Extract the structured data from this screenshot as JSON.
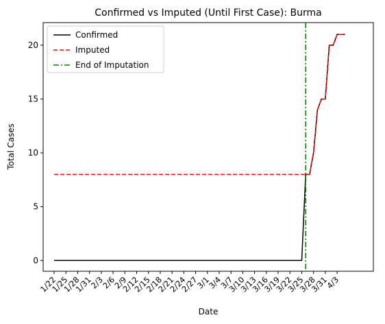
{
  "chart_data": {
    "type": "line",
    "title": "Confirmed vs Imputed (Until First Case): Burma",
    "xlabel": "Date",
    "ylabel": "Total Cases",
    "ylim": [
      -1,
      22.1
    ],
    "x_tick_labels": [
      "1/22",
      "1/25",
      "1/28",
      "1/31",
      "2/3",
      "2/6",
      "2/9",
      "2/12",
      "2/15",
      "2/18",
      "2/21",
      "2/24",
      "2/27",
      "3/1",
      "3/4",
      "3/7",
      "3/10",
      "3/13",
      "3/16",
      "3/19",
      "3/22",
      "3/25",
      "3/28",
      "3/31",
      "4/3"
    ],
    "y_ticks": [
      0,
      5,
      10,
      15,
      20
    ],
    "x_dates": [
      "1/22",
      "1/23",
      "1/24",
      "1/25",
      "1/26",
      "1/27",
      "1/28",
      "1/29",
      "1/30",
      "1/31",
      "2/1",
      "2/2",
      "2/3",
      "2/4",
      "2/5",
      "2/6",
      "2/7",
      "2/8",
      "2/9",
      "2/10",
      "2/11",
      "2/12",
      "2/13",
      "2/14",
      "2/15",
      "2/16",
      "2/17",
      "2/18",
      "2/19",
      "2/20",
      "2/21",
      "2/22",
      "2/23",
      "2/24",
      "2/25",
      "2/26",
      "2/27",
      "2/28",
      "2/29",
      "3/1",
      "3/2",
      "3/3",
      "3/4",
      "3/5",
      "3/6",
      "3/7",
      "3/8",
      "3/9",
      "3/10",
      "3/11",
      "3/12",
      "3/13",
      "3/14",
      "3/15",
      "3/16",
      "3/17",
      "3/18",
      "3/19",
      "3/20",
      "3/21",
      "3/22",
      "3/23",
      "3/24",
      "3/25",
      "3/26",
      "3/27",
      "3/28",
      "3/29",
      "3/30",
      "3/31",
      "4/1",
      "4/2",
      "4/3",
      "4/4",
      "4/5"
    ],
    "series": [
      {
        "name": "Confirmed",
        "color": "#000000",
        "style": "solid",
        "values": [
          0,
          0,
          0,
          0,
          0,
          0,
          0,
          0,
          0,
          0,
          0,
          0,
          0,
          0,
          0,
          0,
          0,
          0,
          0,
          0,
          0,
          0,
          0,
          0,
          0,
          0,
          0,
          0,
          0,
          0,
          0,
          0,
          0,
          0,
          0,
          0,
          0,
          0,
          0,
          0,
          0,
          0,
          0,
          0,
          0,
          0,
          0,
          0,
          0,
          0,
          0,
          0,
          0,
          0,
          0,
          0,
          0,
          0,
          0,
          0,
          0,
          0,
          0,
          0,
          8,
          8,
          10,
          14,
          15,
          15,
          20,
          20,
          21,
          21,
          21
        ]
      },
      {
        "name": "Imputed",
        "color": "#ff0000",
        "style": "dashed",
        "values": [
          8,
          8,
          8,
          8,
          8,
          8,
          8,
          8,
          8,
          8,
          8,
          8,
          8,
          8,
          8,
          8,
          8,
          8,
          8,
          8,
          8,
          8,
          8,
          8,
          8,
          8,
          8,
          8,
          8,
          8,
          8,
          8,
          8,
          8,
          8,
          8,
          8,
          8,
          8,
          8,
          8,
          8,
          8,
          8,
          8,
          8,
          8,
          8,
          8,
          8,
          8,
          8,
          8,
          8,
          8,
          8,
          8,
          8,
          8,
          8,
          8,
          8,
          8,
          8,
          8,
          8,
          10,
          14,
          15,
          15,
          20,
          20,
          21,
          21,
          21
        ]
      }
    ],
    "vline": {
      "name": "End of Imputation",
      "date": "3/26",
      "color": "#008000",
      "style": "dashdot"
    },
    "legend_position": "top-left",
    "grid": false
  }
}
